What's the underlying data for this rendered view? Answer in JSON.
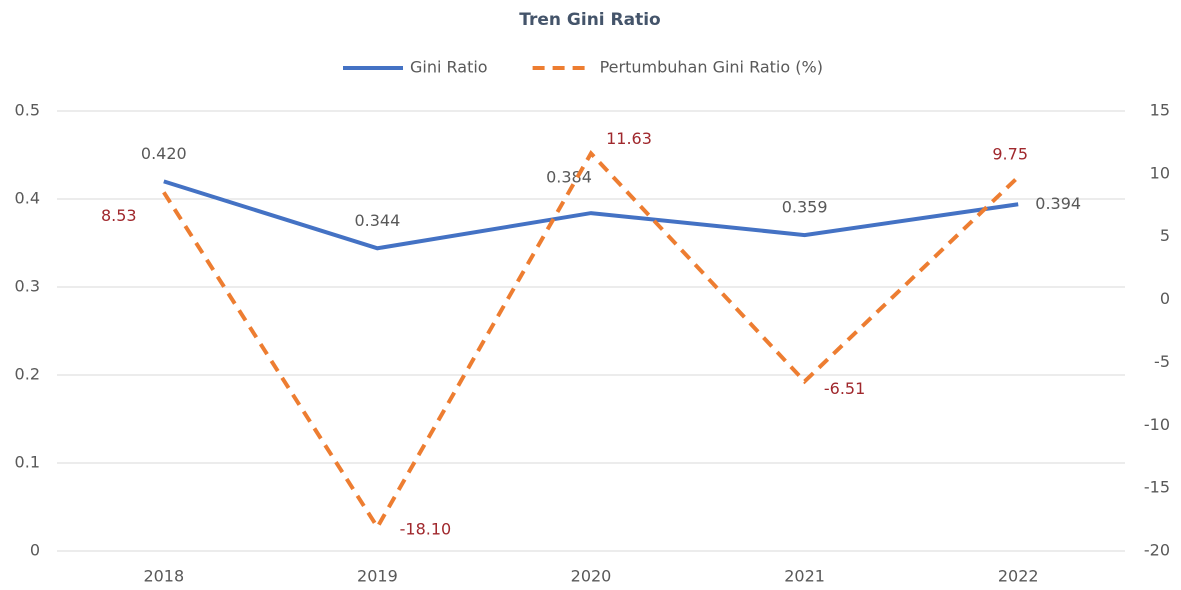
{
  "chart_data": {
    "type": "line",
    "title": "Tren Gini Ratio",
    "categories": [
      "2018",
      "2019",
      "2020",
      "2021",
      "2022"
    ],
    "series": [
      {
        "name": "Gini Ratio",
        "color": "#4472c4",
        "values": [
          0.42,
          0.344,
          0.384,
          0.359,
          0.394
        ],
        "value_labels": [
          "0.420",
          "0.344",
          "0.384",
          "0.359",
          "0.394"
        ]
      },
      {
        "name": "Pertumbuhan Gini Ratio (%)",
        "color": "#ed7d31",
        "axis": "y2",
        "dashed": true,
        "values": [
          8.53,
          -18.1,
          11.63,
          -6.51,
          9.75
        ],
        "value_labels": [
          "8.53",
          "-18.10",
          "11.63",
          "-6.51",
          "9.75"
        ]
      }
    ],
    "ylim": [
      0,
      0.5
    ],
    "yticks": [
      0,
      0.1,
      0.2,
      0.3,
      0.4,
      0.5
    ],
    "y2lim": [
      -20,
      15
    ],
    "y2ticks": [
      -20,
      -15,
      -10,
      -5,
      0,
      5,
      10,
      15
    ],
    "grid": true,
    "legend": "top"
  }
}
